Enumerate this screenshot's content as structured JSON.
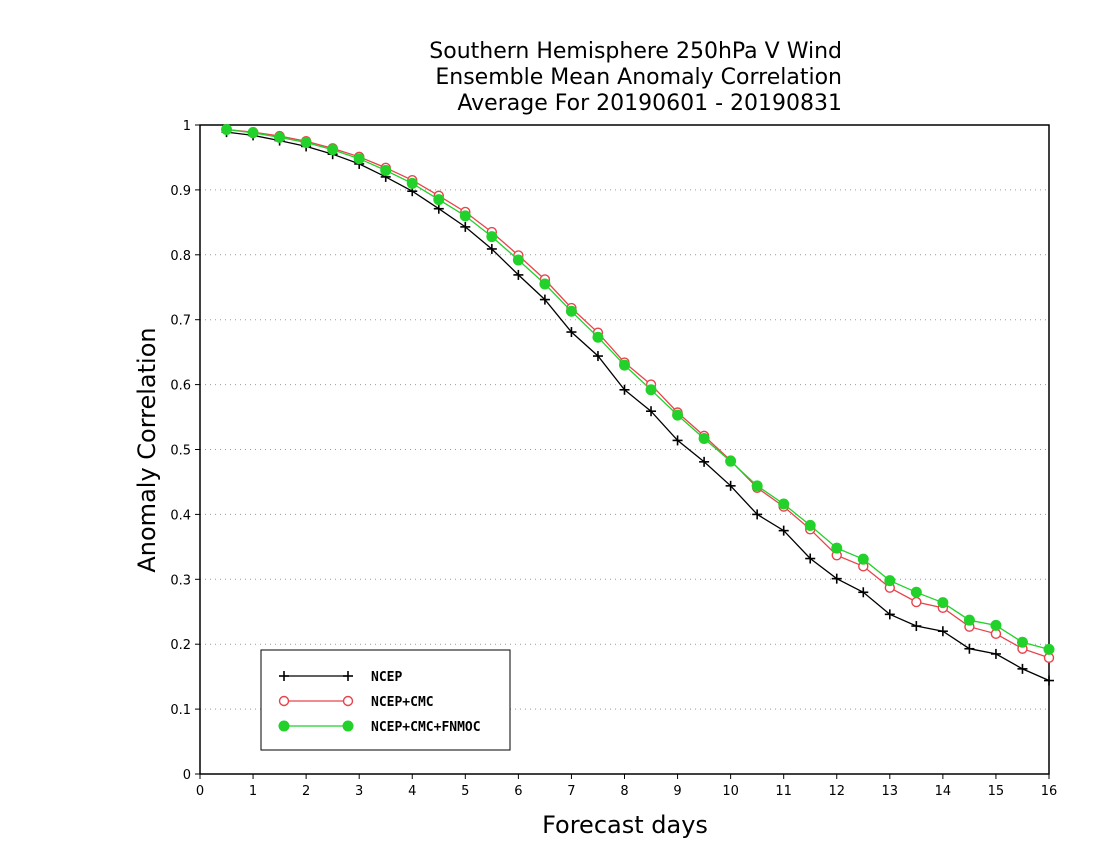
{
  "chart_data": {
    "type": "line",
    "title_lines": [
      "Southern Hemisphere 250hPa V Wind",
      "Ensemble Mean Anomaly Correlation",
      "Average For 20190601 - 20190831"
    ],
    "xlabel": "Forecast days",
    "ylabel": "Anomaly Correlation",
    "xlim": [
      0,
      16
    ],
    "ylim": [
      0,
      1
    ],
    "x_ticks": [
      0,
      1,
      2,
      3,
      4,
      5,
      6,
      7,
      8,
      9,
      10,
      11,
      12,
      13,
      14,
      15,
      16
    ],
    "y_ticks": [
      0,
      0.1,
      0.2,
      0.3,
      0.4,
      0.5,
      0.6,
      0.7,
      0.8,
      0.9,
      1
    ],
    "y_tick_labels": [
      "0",
      "0.1",
      "0.2",
      "0.3",
      "0.4",
      "0.5",
      "0.6",
      "0.7",
      "0.8",
      "0.9",
      "1"
    ],
    "grid": "horizontal dotted",
    "legend_position": "bottom-left",
    "x": [
      0.5,
      1,
      1.5,
      2,
      2.5,
      3,
      3.5,
      4,
      4.5,
      5,
      5.5,
      6,
      6.5,
      7,
      7.5,
      8,
      8.5,
      9,
      9.5,
      10,
      10.5,
      11,
      11.5,
      12,
      12.5,
      13,
      13.5,
      14,
      14.5,
      15,
      15.5,
      16
    ],
    "series": [
      {
        "name": "NCEP",
        "color": "#000000",
        "marker": "plus",
        "values": [
          0.989,
          0.984,
          0.976,
          0.967,
          0.955,
          0.94,
          0.92,
          0.898,
          0.871,
          0.843,
          0.809,
          0.769,
          0.731,
          0.681,
          0.644,
          0.592,
          0.559,
          0.514,
          0.481,
          0.444,
          0.4,
          0.375,
          0.332,
          0.301,
          0.28,
          0.246,
          0.228,
          0.22,
          0.193,
          0.185,
          0.162,
          0.144
        ]
      },
      {
        "name": "NCEP+CMC",
        "color": "#e8434b",
        "marker": "open-circle",
        "values": [
          0.993,
          0.989,
          0.983,
          0.975,
          0.964,
          0.951,
          0.934,
          0.915,
          0.891,
          0.866,
          0.835,
          0.799,
          0.762,
          0.718,
          0.68,
          0.634,
          0.6,
          0.557,
          0.521,
          0.483,
          0.441,
          0.412,
          0.377,
          0.337,
          0.32,
          0.287,
          0.265,
          0.256,
          0.227,
          0.216,
          0.193,
          0.179
        ]
      },
      {
        "name": "NCEP+CMC+FNMOC",
        "color": "#22d12a",
        "marker": "filled-circle",
        "values": [
          0.993,
          0.988,
          0.981,
          0.973,
          0.962,
          0.948,
          0.93,
          0.91,
          0.885,
          0.86,
          0.828,
          0.792,
          0.755,
          0.713,
          0.673,
          0.63,
          0.592,
          0.553,
          0.517,
          0.482,
          0.444,
          0.416,
          0.383,
          0.348,
          0.331,
          0.298,
          0.28,
          0.264,
          0.237,
          0.229,
          0.203,
          0.192
        ]
      }
    ]
  }
}
